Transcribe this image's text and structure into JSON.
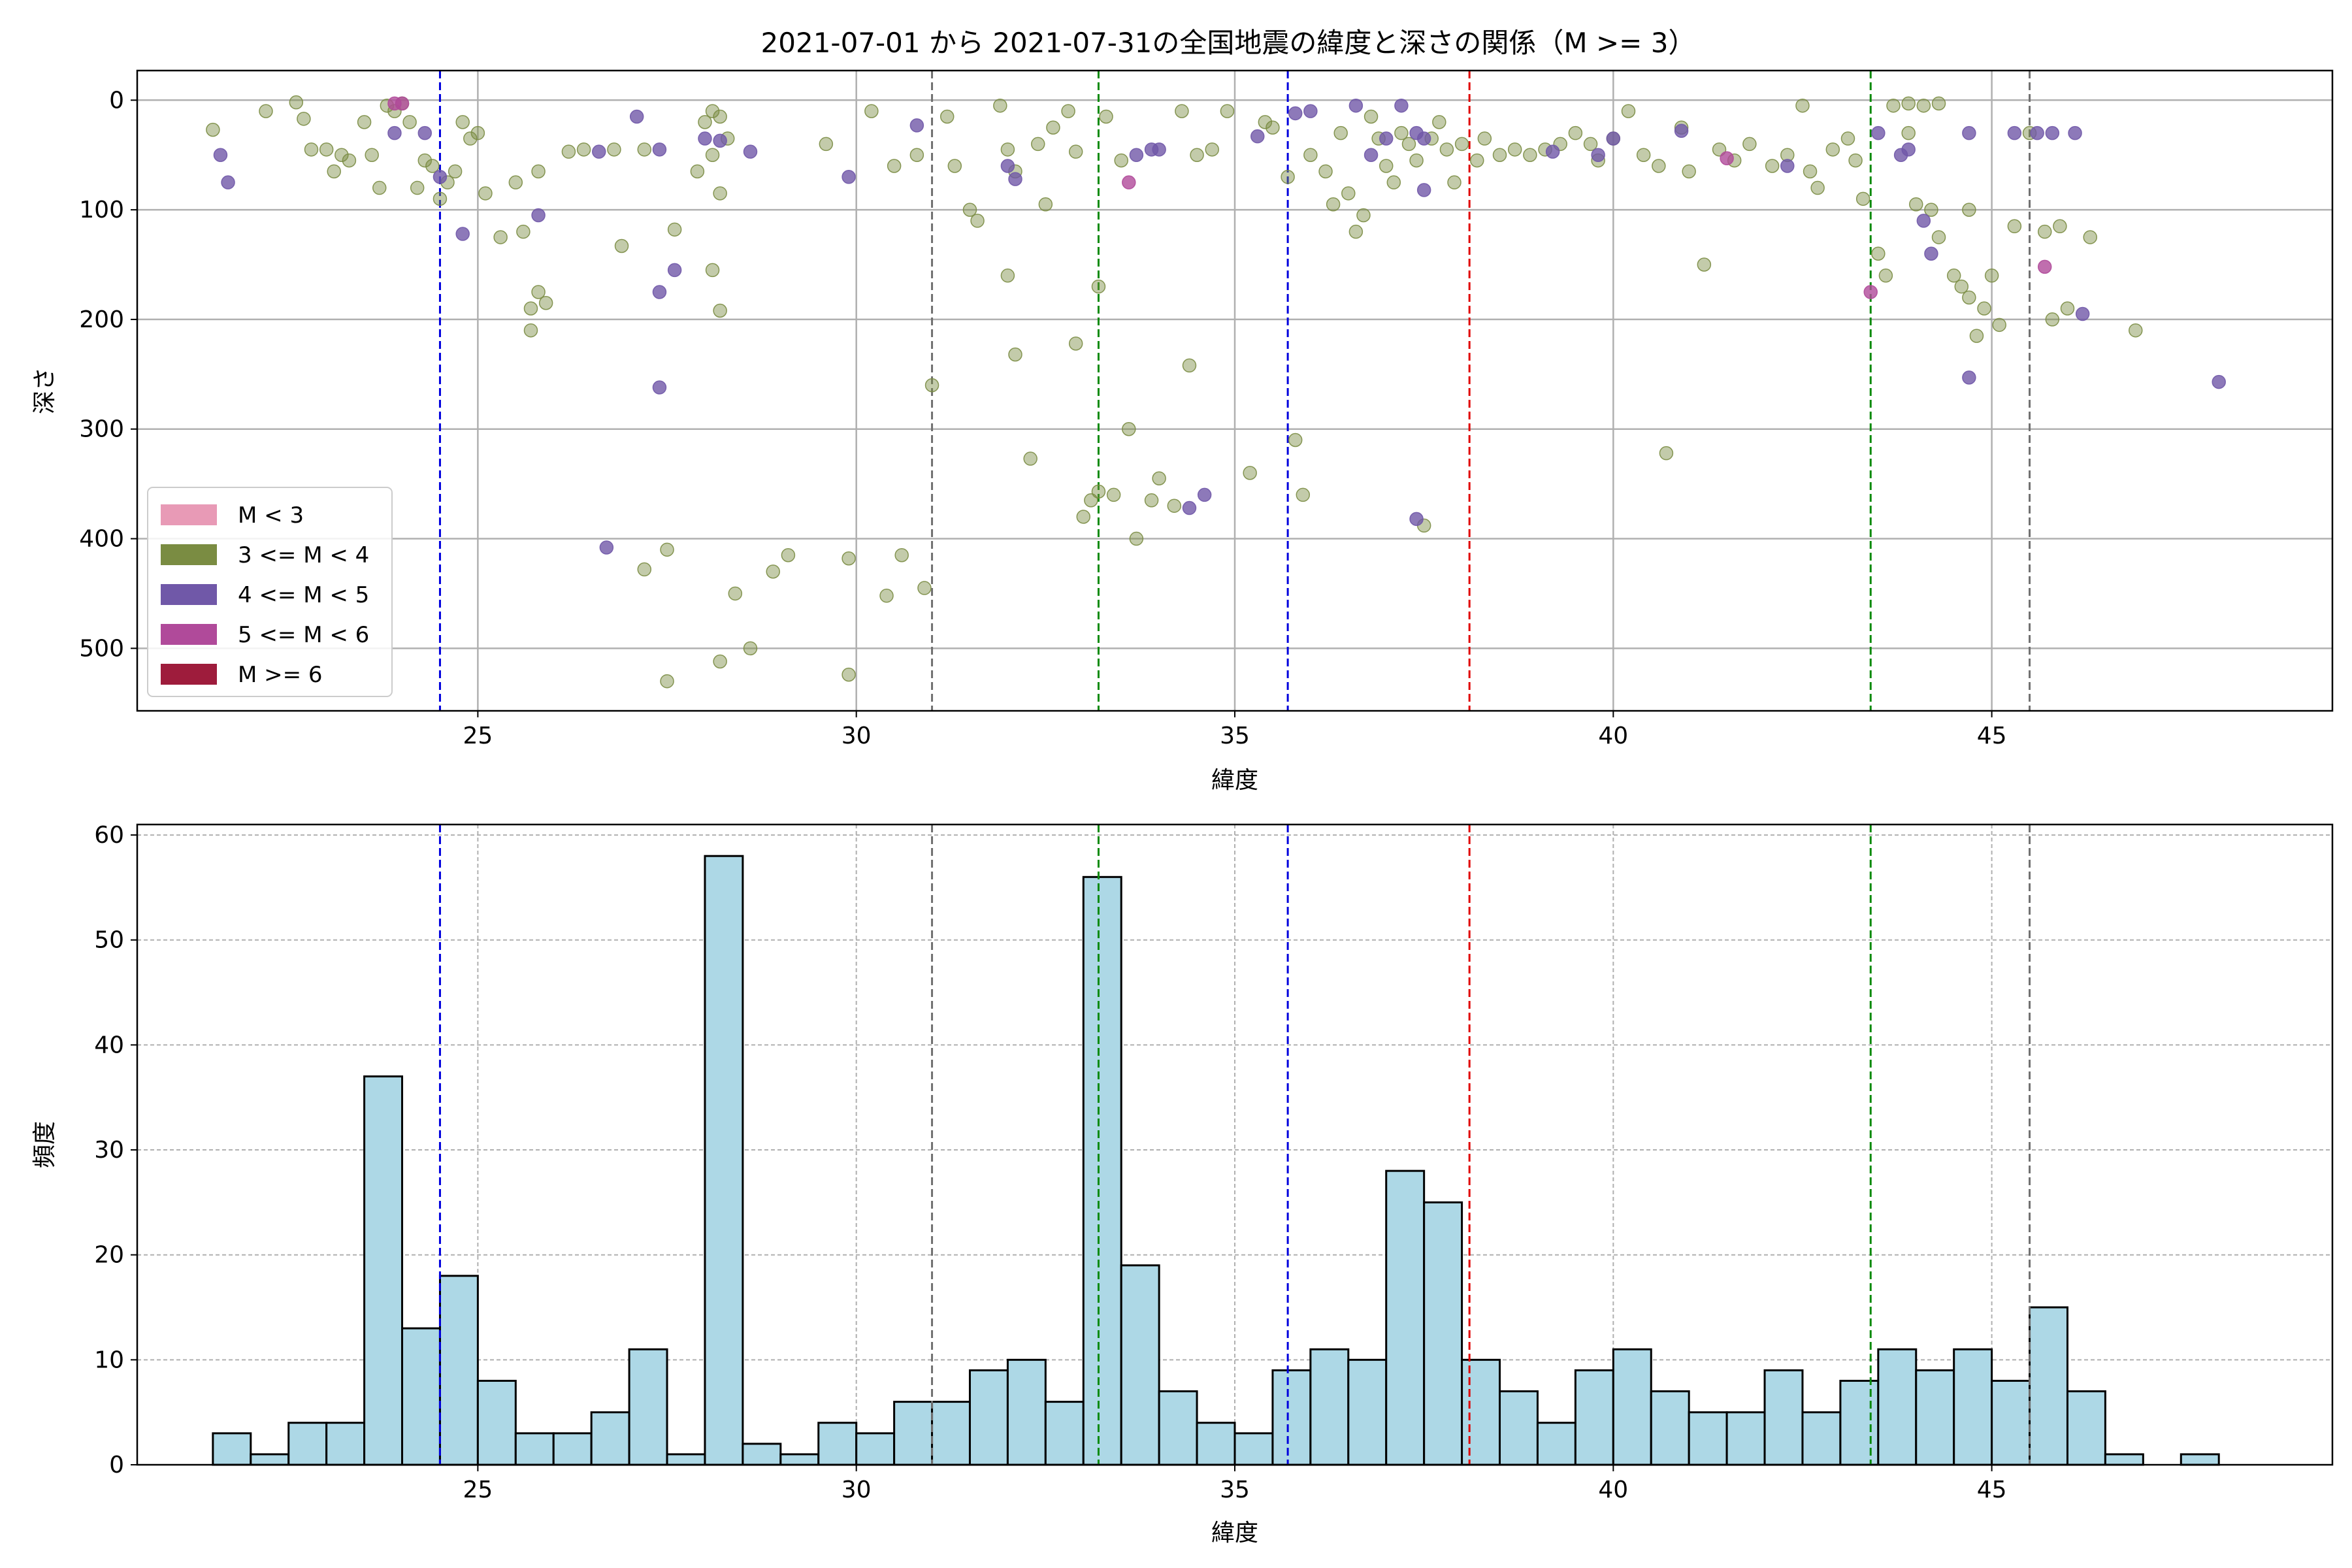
{
  "chart_data": [
    {
      "type": "scatter",
      "title": "2021-07-01 から 2021-07-31の全国地震の緯度と深さの関係（M >= 3）",
      "xlabel": "緯度",
      "ylabel": "深さ",
      "xlim": [
        20.5,
        49.5
      ],
      "ylim": [
        557,
        -27
      ],
      "y_inverted": true,
      "xticks": [
        25,
        30,
        35,
        40,
        45
      ],
      "yticks": [
        0,
        100,
        200,
        300,
        400,
        500
      ],
      "grid": true,
      "legend_position": "lower-left",
      "legend": [
        {
          "label": "M < 3",
          "color": "#e89ab6"
        },
        {
          "label": "3 <= M < 4",
          "color": "#7a8c42"
        },
        {
          "label": "4 <= M < 5",
          "color": "#7058a8"
        },
        {
          "label": "5 <= M < 6",
          "color": "#b04a9a"
        },
        {
          "label": "M >= 6",
          "color": "#9e1c3c"
        }
      ],
      "vlines": [
        {
          "x": 24.5,
          "color": "#0000dd"
        },
        {
          "x": 31.0,
          "color": "#707070"
        },
        {
          "x": 33.2,
          "color": "#0a8a0a"
        },
        {
          "x": 35.7,
          "color": "#0000dd"
        },
        {
          "x": 38.1,
          "color": "#e00000"
        },
        {
          "x": 43.4,
          "color": "#0a8a0a"
        },
        {
          "x": 45.5,
          "color": "#707070"
        }
      ],
      "series": [
        {
          "magnitude_class": "3 <= M < 4",
          "color": "#7a8c42",
          "points": [
            [
              21.5,
              27
            ],
            [
              22.2,
              10
            ],
            [
              22.6,
              2
            ],
            [
              22.7,
              17
            ],
            [
              22.8,
              45
            ],
            [
              23.0,
              45
            ],
            [
              23.1,
              65
            ],
            [
              23.2,
              50
            ],
            [
              23.3,
              55
            ],
            [
              23.5,
              20
            ],
            [
              23.6,
              50
            ],
            [
              23.7,
              80
            ],
            [
              23.8,
              5
            ],
            [
              23.9,
              10
            ],
            [
              24.0,
              3
            ],
            [
              24.1,
              20
            ],
            [
              24.2,
              80
            ],
            [
              24.3,
              55
            ],
            [
              24.4,
              60
            ],
            [
              24.5,
              90
            ],
            [
              24.6,
              75
            ],
            [
              24.7,
              65
            ],
            [
              24.8,
              20
            ],
            [
              24.9,
              35
            ],
            [
              25.0,
              30
            ],
            [
              25.1,
              85
            ],
            [
              25.3,
              125
            ],
            [
              25.5,
              75
            ],
            [
              25.6,
              120
            ],
            [
              25.8,
              65
            ],
            [
              25.7,
              190
            ],
            [
              25.8,
              175
            ],
            [
              25.9,
              185
            ],
            [
              25.7,
              210
            ],
            [
              26.2,
              47
            ],
            [
              26.4,
              45
            ],
            [
              26.8,
              45
            ],
            [
              26.9,
              133
            ],
            [
              27.2,
              45
            ],
            [
              27.6,
              118
            ],
            [
              27.9,
              65
            ],
            [
              28.1,
              50
            ],
            [
              27.5,
              410
            ],
            [
              27.2,
              428
            ],
            [
              27.5,
              530
            ],
            [
              28.0,
              20
            ],
            [
              28.1,
              10
            ],
            [
              28.2,
              15
            ],
            [
              28.3,
              35
            ],
            [
              28.2,
              85
            ],
            [
              28.1,
              155
            ],
            [
              28.2,
              192
            ],
            [
              28.2,
              512
            ],
            [
              28.4,
              450
            ],
            [
              28.6,
              500
            ],
            [
              28.9,
              430
            ],
            [
              29.1,
              415
            ],
            [
              29.6,
              40
            ],
            [
              29.9,
              418
            ],
            [
              29.9,
              524
            ],
            [
              30.2,
              10
            ],
            [
              30.4,
              452
            ],
            [
              30.5,
              60
            ],
            [
              30.6,
              415
            ],
            [
              30.8,
              50
            ],
            [
              30.9,
              445
            ],
            [
              31.0,
              260
            ],
            [
              31.2,
              15
            ],
            [
              31.3,
              60
            ],
            [
              31.5,
              100
            ],
            [
              31.6,
              110
            ],
            [
              31.9,
              5
            ],
            [
              32.0,
              45
            ],
            [
              32.1,
              65
            ],
            [
              32.0,
              160
            ],
            [
              32.1,
              232
            ],
            [
              32.3,
              327
            ],
            [
              32.5,
              95
            ],
            [
              32.4,
              40
            ],
            [
              32.6,
              25
            ],
            [
              32.8,
              10
            ],
            [
              32.9,
              47
            ],
            [
              32.9,
              222
            ],
            [
              33.0,
              380
            ],
            [
              33.1,
              365
            ],
            [
              33.2,
              357
            ],
            [
              33.2,
              170
            ],
            [
              33.3,
              15
            ],
            [
              33.4,
              360
            ],
            [
              33.5,
              55
            ],
            [
              33.6,
              300
            ],
            [
              33.7,
              400
            ],
            [
              33.9,
              365
            ],
            [
              34.0,
              345
            ],
            [
              34.2,
              370
            ],
            [
              34.3,
              10
            ],
            [
              34.4,
              242
            ],
            [
              34.5,
              50
            ],
            [
              34.7,
              45
            ],
            [
              34.9,
              10
            ],
            [
              35.2,
              340
            ],
            [
              35.4,
              20
            ],
            [
              35.5,
              25
            ],
            [
              35.7,
              70
            ],
            [
              35.8,
              310
            ],
            [
              35.9,
              360
            ],
            [
              36.0,
              50
            ],
            [
              36.2,
              65
            ],
            [
              36.3,
              95
            ],
            [
              36.4,
              30
            ],
            [
              36.5,
              85
            ],
            [
              36.6,
              120
            ],
            [
              36.7,
              105
            ],
            [
              36.8,
              15
            ],
            [
              36.9,
              35
            ],
            [
              37.0,
              60
            ],
            [
              37.1,
              75
            ],
            [
              37.2,
              30
            ],
            [
              37.3,
              40
            ],
            [
              37.4,
              55
            ],
            [
              37.5,
              388
            ],
            [
              37.6,
              35
            ],
            [
              37.7,
              20
            ],
            [
              37.8,
              45
            ],
            [
              37.9,
              75
            ],
            [
              38.0,
              40
            ],
            [
              38.2,
              55
            ],
            [
              38.3,
              35
            ],
            [
              38.5,
              50
            ],
            [
              38.7,
              45
            ],
            [
              38.9,
              50
            ],
            [
              39.1,
              45
            ],
            [
              39.3,
              40
            ],
            [
              39.5,
              30
            ],
            [
              39.7,
              40
            ],
            [
              39.8,
              55
            ],
            [
              40.0,
              35
            ],
            [
              40.2,
              10
            ],
            [
              40.4,
              50
            ],
            [
              40.6,
              60
            ],
            [
              40.7,
              322
            ],
            [
              40.9,
              25
            ],
            [
              41.0,
              65
            ],
            [
              41.2,
              150
            ],
            [
              41.4,
              45
            ],
            [
              41.6,
              55
            ],
            [
              41.8,
              40
            ],
            [
              42.1,
              60
            ],
            [
              42.3,
              50
            ],
            [
              42.5,
              5
            ],
            [
              42.6,
              65
            ],
            [
              42.7,
              80
            ],
            [
              42.9,
              45
            ],
            [
              43.1,
              35
            ],
            [
              43.2,
              55
            ],
            [
              43.3,
              90
            ],
            [
              43.5,
              140
            ],
            [
              43.6,
              160
            ],
            [
              43.7,
              5
            ],
            [
              43.9,
              30
            ],
            [
              44.0,
              95
            ],
            [
              44.2,
              100
            ],
            [
              44.3,
              125
            ],
            [
              44.5,
              160
            ],
            [
              44.6,
              170
            ],
            [
              44.7,
              180
            ],
            [
              44.8,
              215
            ],
            [
              44.9,
              190
            ],
            [
              45.0,
              160
            ],
            [
              45.1,
              205
            ],
            [
              45.3,
              115
            ],
            [
              45.5,
              30
            ],
            [
              45.7,
              120
            ],
            [
              45.8,
              200
            ],
            [
              45.9,
              115
            ],
            [
              46.0,
              190
            ],
            [
              46.3,
              125
            ],
            [
              46.9,
              210
            ],
            [
              44.1,
              5
            ],
            [
              44.3,
              3
            ],
            [
              43.9,
              3
            ],
            [
              44.7,
              100
            ]
          ]
        },
        {
          "magnitude_class": "4 <= M < 5",
          "color": "#7058a8",
          "points": [
            [
              21.6,
              50
            ],
            [
              21.7,
              75
            ],
            [
              23.9,
              30
            ],
            [
              24.3,
              30
            ],
            [
              24.5,
              70
            ],
            [
              24.8,
              122
            ],
            [
              25.8,
              105
            ],
            [
              26.6,
              47
            ],
            [
              26.7,
              408
            ],
            [
              27.1,
              15
            ],
            [
              27.4,
              45
            ],
            [
              27.4,
              262
            ],
            [
              27.4,
              175
            ],
            [
              27.6,
              155
            ],
            [
              28.0,
              35
            ],
            [
              28.2,
              37
            ],
            [
              28.6,
              47
            ],
            [
              29.9,
              70
            ],
            [
              30.8,
              23
            ],
            [
              32.0,
              60
            ],
            [
              32.1,
              72
            ],
            [
              33.7,
              50
            ],
            [
              33.9,
              45
            ],
            [
              34.0,
              45
            ],
            [
              34.4,
              372
            ],
            [
              34.6,
              360
            ],
            [
              35.3,
              33
            ],
            [
              35.8,
              12
            ],
            [
              36.0,
              10
            ],
            [
              36.6,
              5
            ],
            [
              36.8,
              50
            ],
            [
              37.0,
              35
            ],
            [
              37.2,
              5
            ],
            [
              37.4,
              30
            ],
            [
              37.5,
              35
            ],
            [
              37.5,
              82
            ],
            [
              37.4,
              382
            ],
            [
              39.2,
              47
            ],
            [
              39.8,
              50
            ],
            [
              40.0,
              35
            ],
            [
              40.9,
              28
            ],
            [
              42.3,
              60
            ],
            [
              43.5,
              30
            ],
            [
              43.8,
              50
            ],
            [
              43.9,
              45
            ],
            [
              44.1,
              110
            ],
            [
              44.2,
              140
            ],
            [
              44.7,
              30
            ],
            [
              44.7,
              253
            ],
            [
              45.3,
              30
            ],
            [
              45.6,
              30
            ],
            [
              45.8,
              30
            ],
            [
              46.1,
              30
            ],
            [
              46.2,
              195
            ],
            [
              48.0,
              257
            ]
          ]
        },
        {
          "magnitude_class": "5 <= M < 6",
          "color": "#b04a9a",
          "points": [
            [
              23.9,
              3
            ],
            [
              24.0,
              3
            ],
            [
              33.6,
              75
            ],
            [
              41.5,
              53
            ],
            [
              43.4,
              175
            ],
            [
              45.7,
              152
            ]
          ]
        }
      ]
    },
    {
      "type": "bar",
      "subtype": "histogram",
      "xlabel": "緯度",
      "ylabel": "頻度",
      "xlim": [
        20.5,
        49.5
      ],
      "ylim": [
        0,
        61
      ],
      "xticks": [
        25,
        30,
        35,
        40,
        45
      ],
      "yticks": [
        0,
        10,
        20,
        30,
        40,
        50,
        60
      ],
      "grid": true,
      "bar_color": "#add8e6",
      "bin_start": 21.5,
      "bin_width": 0.5,
      "values": [
        3,
        1,
        4,
        4,
        37,
        13,
        18,
        8,
        3,
        3,
        5,
        11,
        1,
        58,
        2,
        1,
        4,
        3,
        6,
        6,
        9,
        10,
        6,
        56,
        19,
        7,
        4,
        3,
        9,
        11,
        10,
        28,
        25,
        10,
        7,
        4,
        9,
        11,
        7,
        5,
        5,
        9,
        5,
        8,
        11,
        9,
        11,
        8,
        15,
        7,
        1,
        0,
        1
      ],
      "vlines": [
        {
          "x": 24.5,
          "color": "#0000dd"
        },
        {
          "x": 31.0,
          "color": "#707070"
        },
        {
          "x": 33.2,
          "color": "#0a8a0a"
        },
        {
          "x": 35.7,
          "color": "#0000dd"
        },
        {
          "x": 38.1,
          "color": "#e00000"
        },
        {
          "x": 43.4,
          "color": "#0a8a0a"
        },
        {
          "x": 45.5,
          "color": "#707070"
        }
      ]
    }
  ]
}
